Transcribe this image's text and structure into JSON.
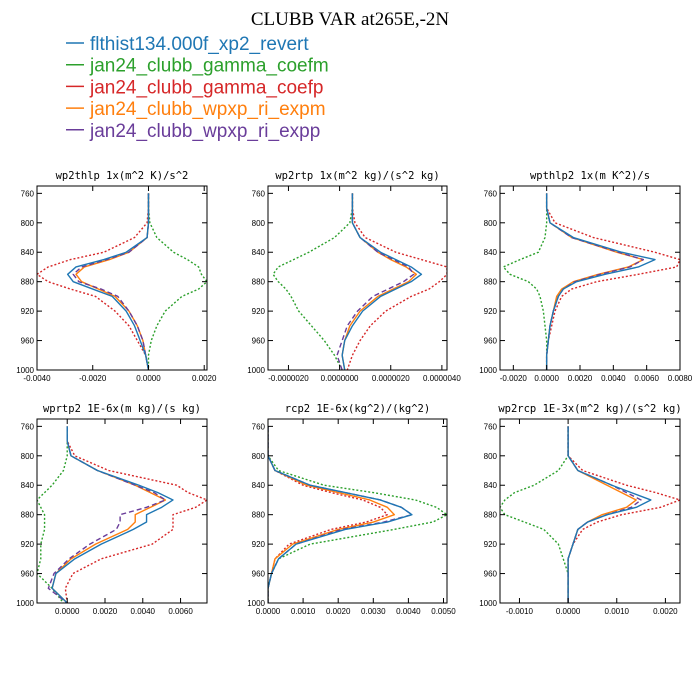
{
  "figure": {
    "title": "CLUBB VAR at265E,-2N"
  },
  "legend": [
    {
      "name": "flthist134.000f_xp2_revert",
      "color": "#1f77b4",
      "dash": "solid"
    },
    {
      "name": "jan24_clubb_gamma_coefm",
      "color": "#2ca02c",
      "dash": "dotted"
    },
    {
      "name": "jan24_clubb_gamma_coefp",
      "color": "#d62728",
      "dash": "dotted"
    },
    {
      "name": "jan24_clubb_wpxp_ri_expm",
      "color": "#ff7f0e",
      "dash": "solid"
    },
    {
      "name": "jan24_clubb_wpxp_ri_expp",
      "color": "#6a3d9a",
      "dash": "dashed"
    }
  ],
  "chart_data": [
    {
      "type": "line",
      "title": "wp2thlp  1x(m^2 K)/s^2",
      "xlim": [
        -0.004,
        0.0021
      ],
      "ylim": [
        1000,
        750
      ],
      "xticks": [
        -0.004,
        -0.002,
        0.0,
        0.002
      ],
      "xtick_labels": [
        "-0.0040",
        "-0.0020",
        "0.0000",
        "0.0020"
      ],
      "yticks": [
        760,
        800,
        840,
        880,
        920,
        960,
        1000
      ],
      "levels": [
        760,
        780,
        800,
        820,
        840,
        850,
        860,
        870,
        880,
        890,
        900,
        920,
        940,
        960,
        980,
        1000
      ],
      "series": [
        {
          "name": "flthist134.000f_xp2_revert",
          "values": [
            0,
            0,
            0,
            -5e-05,
            -0.0008,
            -0.0016,
            -0.0026,
            -0.0029,
            -0.0027,
            -0.002,
            -0.0013,
            -0.0008,
            -0.0005,
            -0.0003,
            -0.0001,
            0
          ]
        },
        {
          "name": "jan24_clubb_gamma_coefm",
          "values": [
            0,
            0,
            5e-05,
            0.0003,
            0.0009,
            0.0014,
            0.0018,
            0.0019,
            0.0021,
            0.0018,
            0.0012,
            0.0006,
            0.0003,
            0.0001,
            0,
            0
          ]
        },
        {
          "name": "jan24_clubb_gamma_coefp",
          "values": [
            0,
            0,
            -5e-05,
            -0.0005,
            -0.0016,
            -0.0028,
            -0.0036,
            -0.004,
            -0.0036,
            -0.0028,
            -0.0019,
            -0.0012,
            -0.0007,
            -0.0004,
            -0.0001,
            0
          ]
        },
        {
          "name": "jan24_clubb_wpxp_ri_expm",
          "values": [
            0,
            0,
            0,
            -5e-05,
            -0.0007,
            -0.0014,
            -0.0023,
            -0.0026,
            -0.0024,
            -0.0018,
            -0.0012,
            -0.0007,
            -0.0004,
            -0.0002,
            -0.0001,
            0
          ]
        },
        {
          "name": "jan24_clubb_wpxp_ri_expp",
          "values": [
            0,
            0,
            0,
            -5e-05,
            -0.0007,
            -0.0015,
            -0.0024,
            -0.0027,
            -0.0025,
            -0.0017,
            -0.0011,
            -0.0007,
            -0.0004,
            -0.0002,
            -0.0001,
            0
          ]
        }
      ]
    },
    {
      "type": "line",
      "title": "wp2rtp  1x(m^2 kg)/(s^2 kg)",
      "xlim": [
        -2.8e-06,
        4.2e-06
      ],
      "ylim": [
        1000,
        750
      ],
      "xticks": [
        -2e-06,
        0.0,
        2e-06,
        4e-06
      ],
      "xtick_labels": [
        "-0.0000020",
        "0.0000000",
        "0.0000020",
        "0.0000040"
      ],
      "yticks": [
        760,
        800,
        840,
        880,
        920,
        960,
        1000
      ],
      "levels": [
        760,
        780,
        800,
        820,
        840,
        850,
        860,
        870,
        880,
        890,
        900,
        920,
        940,
        960,
        980,
        1000
      ],
      "series": [
        {
          "name": "flthist134.000f_xp2_revert",
          "values": [
            5e-07,
            5e-07,
            5e-07,
            8e-07,
            1.6e-06,
            2.2e-06,
            2.8e-06,
            3.2e-06,
            2.8e-06,
            2.2e-06,
            1.6e-06,
            9e-07,
            5e-07,
            2e-07,
            1e-07,
            2e-07
          ]
        },
        {
          "name": "jan24_clubb_gamma_coefm",
          "values": [
            5e-07,
            5e-07,
            4e-07,
            -2e-07,
            -1.2e-06,
            -1.8e-06,
            -2.4e-06,
            -2.6e-06,
            -2.4e-06,
            -2.1e-06,
            -1.9e-06,
            -1.6e-06,
            -1.1e-06,
            -6e-07,
            -2e-07,
            1e-07
          ]
        },
        {
          "name": "jan24_clubb_gamma_coefp",
          "values": [
            5e-07,
            5e-07,
            6e-07,
            1e-06,
            2.2e-06,
            3.2e-06,
            4.2e-06,
            4.2e-06,
            3.9e-06,
            3.5e-06,
            2.8e-06,
            1.8e-06,
            1.2e-06,
            8e-07,
            5e-07,
            3e-07
          ]
        },
        {
          "name": "jan24_clubb_wpxp_ri_expm",
          "values": [
            5e-07,
            5e-07,
            5e-07,
            8e-07,
            1.5e-06,
            2e-06,
            2.6e-06,
            3e-06,
            2.7e-06,
            2.1e-06,
            1.5e-06,
            8e-07,
            4e-07,
            2e-07,
            1e-07,
            2e-07
          ]
        },
        {
          "name": "jan24_clubb_wpxp_ri_expp",
          "values": [
            5e-07,
            5e-07,
            5e-07,
            8e-07,
            1.5e-06,
            2.1e-06,
            2.7e-06,
            2.9e-06,
            2.5e-06,
            1.9e-06,
            1.3e-06,
            7e-07,
            3e-07,
            1e-07,
            -1e-07,
            1e-07
          ]
        }
      ]
    },
    {
      "type": "line",
      "title": "wpthlp2  1x(m K^2)/s",
      "xlim": [
        -0.0028,
        0.008
      ],
      "ylim": [
        1000,
        750
      ],
      "xticks": [
        -0.002,
        0.0,
        0.002,
        0.004,
        0.006,
        0.008
      ],
      "xtick_labels": [
        "-0.0020",
        "0.0000",
        "0.0020",
        "0.0040",
        "0.0060",
        "0.0080"
      ],
      "yticks": [
        760,
        800,
        840,
        880,
        920,
        960,
        1000
      ],
      "levels": [
        760,
        780,
        800,
        820,
        840,
        850,
        860,
        870,
        880,
        890,
        900,
        920,
        940,
        960,
        980,
        1000
      ],
      "series": [
        {
          "name": "flthist134.000f_xp2_revert",
          "values": [
            0,
            0,
            0.0002,
            0.0016,
            0.0045,
            0.0065,
            0.0055,
            0.0035,
            0.0018,
            0.001,
            0.0007,
            0.0004,
            0.0002,
            0.0001,
            0,
            0
          ]
        },
        {
          "name": "jan24_clubb_gamma_coefm",
          "values": [
            0,
            0,
            0,
            -0.0001,
            -0.0005,
            -0.0016,
            -0.0026,
            -0.0022,
            -0.0011,
            -0.0006,
            -0.0004,
            -0.0002,
            -0.0001,
            0,
            0,
            0
          ]
        },
        {
          "name": "jan24_clubb_gamma_coefp",
          "values": [
            0,
            0,
            0.0005,
            0.0028,
            0.0065,
            0.008,
            0.0078,
            0.0055,
            0.003,
            0.0015,
            0.0009,
            0.0005,
            0.0003,
            0.0001,
            0,
            0
          ]
        },
        {
          "name": "jan24_clubb_wpxp_ri_expm",
          "values": [
            0,
            0,
            0.0002,
            0.0015,
            0.0042,
            0.0058,
            0.0049,
            0.0031,
            0.0016,
            0.0009,
            0.0006,
            0.0004,
            0.0002,
            0.0001,
            0,
            0
          ]
        },
        {
          "name": "jan24_clubb_wpxp_ri_expp",
          "values": [
            0,
            0,
            0.0002,
            0.0015,
            0.0043,
            0.0058,
            0.005,
            0.0032,
            0.0017,
            0.001,
            0.0007,
            0.0004,
            0.0002,
            0.0001,
            0,
            0
          ]
        }
      ]
    },
    {
      "type": "line",
      "title": "wprtp2  1E-6x(m kg)/(s kg)",
      "xlim": [
        -0.0016,
        0.0074
      ],
      "ylim": [
        1000,
        750
      ],
      "xticks": [
        0.0,
        0.002,
        0.004,
        0.006
      ],
      "xtick_labels": [
        "0.0000",
        "0.0020",
        "0.0040",
        "0.0060"
      ],
      "yticks": [
        760,
        800,
        840,
        880,
        920,
        960,
        1000
      ],
      "levels": [
        760,
        780,
        800,
        820,
        840,
        850,
        860,
        870,
        880,
        890,
        900,
        920,
        940,
        960,
        980,
        1000
      ],
      "series": [
        {
          "name": "flthist134.000f_xp2_revert",
          "values": [
            0,
            0,
            0.0002,
            0.0016,
            0.0038,
            0.0048,
            0.0056,
            0.005,
            0.0042,
            0.0042,
            0.0035,
            0.0018,
            0.0004,
            -0.0006,
            -0.0008,
            0
          ]
        },
        {
          "name": "jan24_clubb_gamma_coefm",
          "values": [
            0,
            0,
            0,
            -0.0002,
            -0.0008,
            -0.0012,
            -0.0016,
            -0.0014,
            -0.0012,
            -0.0012,
            -0.0012,
            -0.0014,
            -0.0014,
            -0.0016,
            -0.0008,
            -0.0002
          ]
        },
        {
          "name": "jan24_clubb_gamma_coefp",
          "values": [
            0,
            0,
            0.0004,
            0.0022,
            0.0058,
            0.0064,
            0.0074,
            0.0068,
            0.0056,
            0.0056,
            0.0056,
            0.0045,
            0.0018,
            0.0003,
            -0.0001,
            0
          ]
        },
        {
          "name": "jan24_clubb_wpxp_ri_expm",
          "values": [
            0,
            0,
            0.0002,
            0.0016,
            0.0036,
            0.0044,
            0.0052,
            0.0044,
            0.0036,
            0.0036,
            0.0032,
            0.0015,
            0.0002,
            -0.0006,
            -0.0008,
            0
          ]
        },
        {
          "name": "jan24_clubb_wpxp_ri_expp",
          "values": [
            0,
            0,
            0.0002,
            0.0016,
            0.0036,
            0.0046,
            0.0052,
            0.0042,
            0.0028,
            0.0028,
            0.0026,
            0.0012,
            0.0001,
            -0.0007,
            -0.001,
            0
          ]
        }
      ]
    },
    {
      "type": "line",
      "title": "rcp2  1E-6x(kg^2)/(kg^2)",
      "xlim": [
        0.0,
        0.0051
      ],
      "ylim": [
        1000,
        750
      ],
      "xticks": [
        0.0,
        0.001,
        0.002,
        0.003,
        0.004,
        0.005
      ],
      "xtick_labels": [
        "0.0000",
        "0.0010",
        "0.0020",
        "0.0030",
        "0.0040",
        "0.0050"
      ],
      "yticks": [
        760,
        800,
        840,
        880,
        920,
        960,
        1000
      ],
      "levels": [
        760,
        780,
        800,
        820,
        840,
        850,
        860,
        870,
        880,
        890,
        900,
        920,
        940,
        960,
        980,
        1000
      ],
      "series": [
        {
          "name": "flthist134.000f_xp2_revert",
          "values": [
            0,
            0,
            0,
            0.0002,
            0.0012,
            0.0022,
            0.0032,
            0.0038,
            0.0041,
            0.0034,
            0.0022,
            0.0008,
            0.0003,
            0.0001,
            0,
            0
          ]
        },
        {
          "name": "jan24_clubb_gamma_coefm",
          "values": [
            0,
            0,
            0,
            0.0003,
            0.0016,
            0.003,
            0.0042,
            0.0048,
            0.0051,
            0.0047,
            0.0036,
            0.0012,
            0.0003,
            0.0001,
            0,
            0
          ]
        },
        {
          "name": "jan24_clubb_gamma_coefp",
          "values": [
            0,
            0,
            0,
            0.0002,
            0.001,
            0.0018,
            0.0027,
            0.0032,
            0.0034,
            0.0028,
            0.0018,
            0.0006,
            0.0002,
            0.0001,
            0,
            0
          ]
        },
        {
          "name": "jan24_clubb_wpxp_ri_expm",
          "values": [
            0,
            0,
            0,
            0.0002,
            0.0011,
            0.002,
            0.0029,
            0.0034,
            0.0036,
            0.003,
            0.002,
            0.0007,
            0.0002,
            0.0001,
            0,
            0
          ]
        },
        {
          "name": "jan24_clubb_wpxp_ri_expp",
          "values": [
            0,
            0,
            0,
            0.0002,
            0.0012,
            0.0022,
            0.0032,
            0.0038,
            0.0041,
            0.0033,
            0.0021,
            0.0008,
            0.0003,
            0.0001,
            0,
            0
          ]
        }
      ]
    },
    {
      "type": "line",
      "title": "wp2rcp  1E-3x(m^2 kg)/(s^2 kg)",
      "xlim": [
        -0.0014,
        0.0023
      ],
      "ylim": [
        1000,
        750
      ],
      "xticks": [
        -0.001,
        0.0,
        0.001,
        0.002
      ],
      "xtick_labels": [
        "-0.0010",
        "0.0000",
        "0.0010",
        "0.0020"
      ],
      "yticks": [
        760,
        800,
        840,
        880,
        920,
        960,
        1000
      ],
      "levels": [
        760,
        780,
        800,
        820,
        840,
        850,
        860,
        870,
        880,
        890,
        900,
        920,
        940,
        960,
        980,
        1000
      ],
      "series": [
        {
          "name": "flthist134.000f_xp2_revert",
          "values": [
            0,
            0,
            0,
            0.0002,
            0.0009,
            0.0013,
            0.0017,
            0.0014,
            0.0008,
            0.0004,
            0.0002,
            0.0001,
            0,
            0,
            0,
            0
          ]
        },
        {
          "name": "jan24_clubb_gamma_coefm",
          "values": [
            0,
            0,
            0,
            -0.0002,
            -0.0007,
            -0.0011,
            -0.0013,
            -0.0014,
            -0.0013,
            -0.0009,
            -0.0005,
            -0.0002,
            -0.0001,
            0,
            0,
            0
          ]
        },
        {
          "name": "jan24_clubb_gamma_coefp",
          "values": [
            0,
            0,
            0,
            0.0003,
            0.0012,
            0.0018,
            0.0023,
            0.0019,
            0.0011,
            0.0006,
            0.0003,
            0.0001,
            0,
            0,
            0,
            0
          ]
        },
        {
          "name": "jan24_clubb_wpxp_ri_expm",
          "values": [
            0,
            0,
            0,
            0.0002,
            0.0008,
            0.0011,
            0.0014,
            0.0012,
            0.0007,
            0.0004,
            0.0002,
            0.0001,
            0,
            0,
            0,
            0
          ]
        },
        {
          "name": "jan24_clubb_wpxp_ri_expp",
          "values": [
            0,
            0,
            0,
            0.0002,
            0.0009,
            0.0012,
            0.0015,
            0.0013,
            0.0008,
            0.0004,
            0.0002,
            0.0001,
            0,
            0,
            0,
            0
          ]
        }
      ]
    }
  ]
}
